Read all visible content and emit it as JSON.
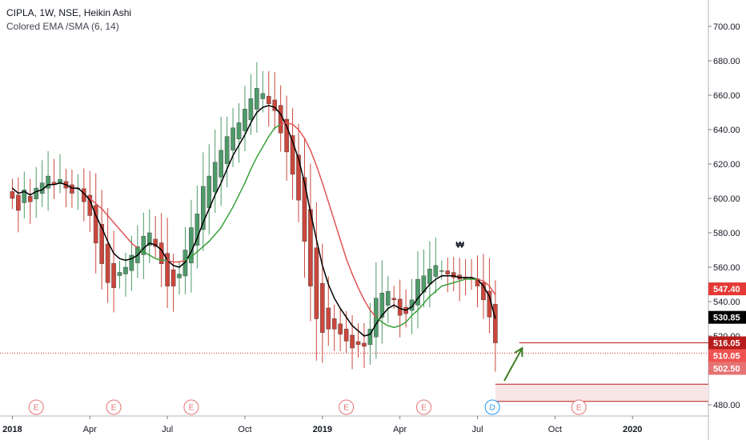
{
  "legend": {
    "symbol_line": "CIPLA, 1W, NSE, Heikin Ashi",
    "indicator_line": "Colored EMA /SMA (6, 14)"
  },
  "colors": {
    "up": "#4e9a6a",
    "down": "#c9473c",
    "ema": "#000000",
    "sma_above": "#e05454",
    "sma_below": "#3aa13a",
    "zone_line": "#b71c1c",
    "zone_fill": "#f8e6e6",
    "arrow": "#3e7d24",
    "event_ring": "#e57373",
    "dividend_ring": "#2196f3",
    "price_dotted": "#d32f2f"
  },
  "chart_data": {
    "type": "candlestick",
    "symbol": "CIPLA",
    "interval": "1W",
    "exchange": "NSE",
    "chart_style": "Heikin Ashi",
    "x_ticks": [
      {
        "label": "2018",
        "t": 0
      },
      {
        "label": "Apr",
        "t": 13
      },
      {
        "label": "Jul",
        "t": 26
      },
      {
        "label": "Oct",
        "t": 39
      },
      {
        "label": "2019",
        "t": 52
      },
      {
        "label": "Apr",
        "t": 65
      },
      {
        "label": "Jul",
        "t": 78
      },
      {
        "label": "Oct",
        "t": 91
      },
      {
        "label": "2020",
        "t": 104
      }
    ],
    "x_range": [
      -1.8,
      121.8
    ],
    "ylim": [
      476,
      712
    ],
    "y_ticks": [
      480,
      500,
      520,
      540,
      560,
      580,
      600,
      620,
      640,
      660,
      680,
      700
    ],
    "y_tick_labels": [
      "480.00",
      "500.00",
      "520.00",
      "540.00",
      "560.00",
      "580.00",
      "600.00",
      "620.00",
      "640.00",
      "660.00",
      "680.00",
      "700.00"
    ],
    "candle_closes": [
      600,
      593,
      605,
      598,
      606,
      609,
      613,
      608,
      611,
      606,
      603,
      606,
      598,
      590,
      574,
      562,
      551,
      548,
      557,
      560,
      567,
      572,
      578,
      580,
      572,
      562,
      549,
      549,
      556,
      570,
      583,
      591,
      607,
      613,
      621,
      628,
      636,
      641,
      644,
      652,
      658,
      664,
      661,
      655,
      651,
      638,
      627,
      614,
      599,
      575,
      549,
      530,
      522,
      524,
      524,
      521,
      517,
      513,
      515,
      514,
      524,
      542,
      545,
      546,
      541,
      532,
      533,
      541,
      553,
      555,
      559,
      561,
      558,
      556,
      554,
      553,
      553,
      553,
      549,
      541,
      531,
      516
    ],
    "series": [
      {
        "name": "EMA 6",
        "values": [
          606,
          603,
          604,
          602,
          604,
          605,
          608,
          608,
          609,
          608,
          606,
          606,
          603,
          599,
          590,
          583,
          575,
          568,
          565,
          564,
          565,
          567,
          571,
          574,
          573,
          570,
          564,
          561,
          560,
          563,
          569,
          577,
          586,
          594,
          602,
          609,
          617,
          625,
          631,
          637,
          644,
          650,
          653,
          654,
          653,
          649,
          642,
          633,
          623,
          609,
          592,
          576,
          561,
          550,
          542,
          536,
          531,
          526,
          523,
          520,
          521,
          527,
          532,
          536,
          538,
          536,
          535,
          537,
          542,
          546,
          550,
          553,
          555,
          555,
          555,
          554,
          554,
          554,
          553,
          549,
          543,
          530
        ]
      },
      {
        "name": "SMA 14",
        "values": [
          null,
          null,
          null,
          null,
          null,
          null,
          null,
          null,
          null,
          null,
          null,
          null,
          null,
          600,
          597,
          594,
          590,
          586,
          582,
          578,
          574,
          571,
          569,
          567,
          565,
          564,
          564,
          563,
          563,
          564,
          566,
          569,
          572,
          575,
          579,
          583,
          589,
          595,
          602,
          609,
          617,
          624,
          630,
          636,
          641,
          643,
          644,
          643,
          640,
          635,
          628,
          619,
          609,
          598,
          587,
          576,
          565,
          556,
          548,
          541,
          535,
          531,
          528,
          526,
          525,
          526,
          528,
          532,
          535,
          539,
          543,
          546,
          549,
          550,
          551,
          552,
          553,
          553,
          553,
          552,
          549,
          544
        ]
      }
    ],
    "price_labels": [
      "547.40",
      "530.85",
      "516.05",
      "510.05",
      "502.50"
    ],
    "events": [
      {
        "label": "E",
        "t": 4,
        "kind": "earnings"
      },
      {
        "label": "E",
        "t": 17,
        "kind": "earnings"
      },
      {
        "label": "E",
        "t": 30,
        "kind": "earnings"
      },
      {
        "label": "E",
        "t": 56,
        "kind": "earnings"
      },
      {
        "label": "E",
        "t": 69,
        "kind": "earnings"
      },
      {
        "label": "D",
        "t": 80.5,
        "kind": "dividend"
      },
      {
        "label": "E",
        "t": 95,
        "kind": "earnings"
      }
    ],
    "annotations": [
      {
        "type": "text",
        "text": "₩",
        "t": 74,
        "y": 576
      },
      {
        "type": "horizontal_line",
        "y": 516.05,
        "t_start": 85,
        "t_end": 121
      },
      {
        "type": "zone",
        "y_top": 492,
        "y_bottom": 482,
        "t_start": 81,
        "t_end": 121
      },
      {
        "type": "arrow",
        "t1": 82.5,
        "y1": 494,
        "t2": 85.5,
        "y2": 513
      }
    ],
    "grid": false,
    "legend_position": "top-left"
  }
}
